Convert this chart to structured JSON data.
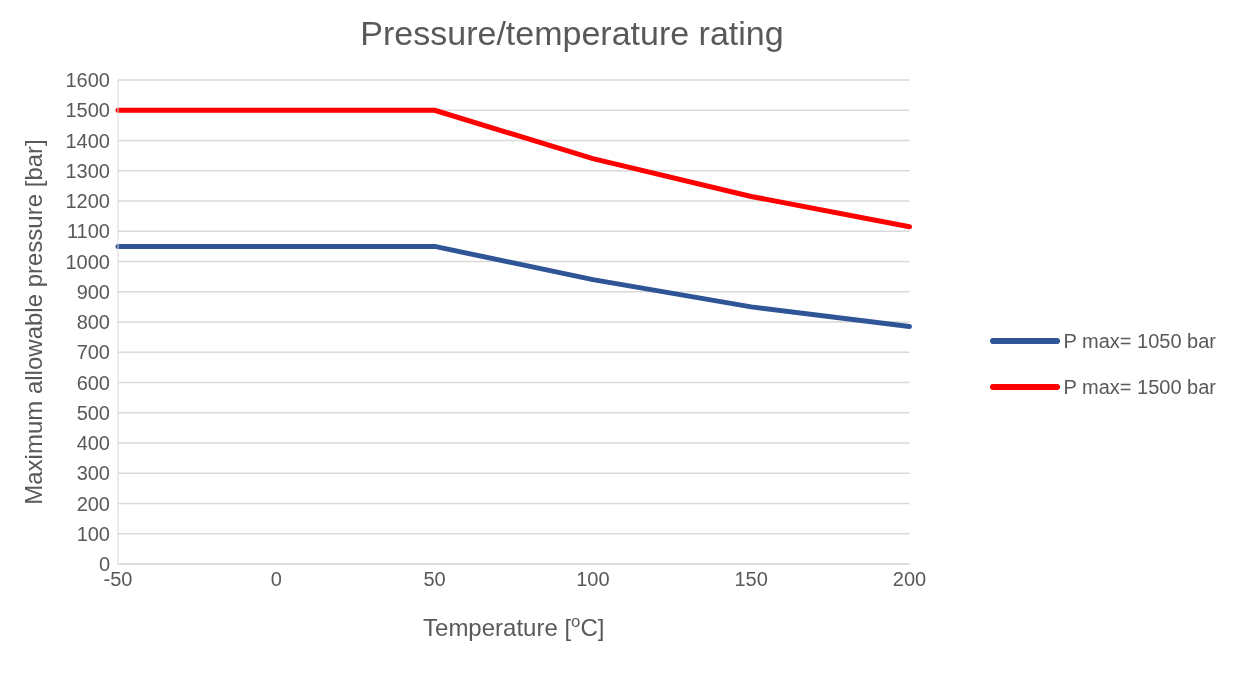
{
  "chart_data": {
    "type": "line",
    "title": "Pressure/temperature rating",
    "xlabel": "Temperature [$^{o}$C]",
    "ylabel": "Maximum allowable pressure [bar]",
    "categories": [
      "-50",
      "0",
      "50",
      "100",
      "150",
      "200"
    ],
    "series": [
      {
        "name": "P max= 1500 bar",
        "color": "#ff0000",
        "values": [
          1500,
          1500,
          1500,
          1340,
          1215,
          1115
        ]
      },
      {
        "name": "P max= 1050 bar",
        "color": "#2f5597",
        "values": [
          1050,
          1050,
          1050,
          940,
          850,
          785
        ]
      }
    ],
    "ylim": [
      0,
      1600
    ],
    "yticks": [
      0,
      100,
      200,
      300,
      400,
      500,
      600,
      700,
      800,
      900,
      1000,
      1100,
      1200,
      1300,
      1400,
      1500,
      1600
    ],
    "grid": "y",
    "legend": "right",
    "marker": "none",
    "line_style": "solid"
  }
}
